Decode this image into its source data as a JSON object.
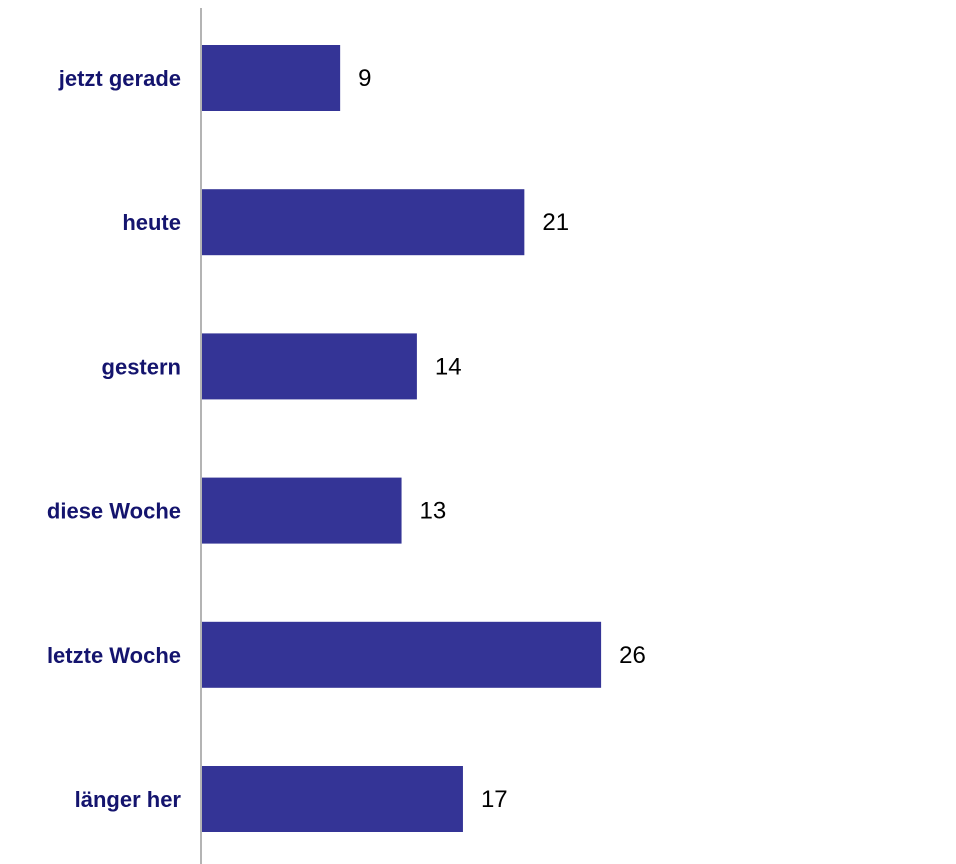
{
  "chart_data": {
    "type": "bar",
    "orientation": "horizontal",
    "categories": [
      "jetzt gerade",
      "heute",
      "gestern",
      "diese Woche",
      "letzte Woche",
      "länger her"
    ],
    "values": [
      9,
      21,
      14,
      13,
      26,
      17
    ],
    "title": "",
    "xlabel": "",
    "ylabel": "",
    "xlim": [
      0,
      30
    ],
    "grid": false,
    "legend": "none",
    "data_labels": true
  },
  "colors": {
    "bar": "#343496",
    "category_text": "#14146e",
    "value_text": "#000000",
    "axis": "#b4b4b4"
  }
}
